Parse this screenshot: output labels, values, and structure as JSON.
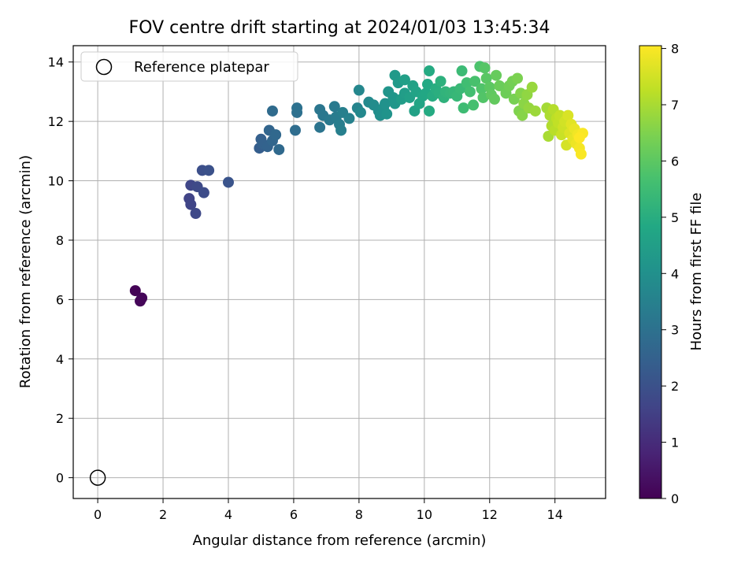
{
  "chart_data": {
    "type": "scatter",
    "title": "FOV centre drift starting at 2024/01/03 13:45:34",
    "xlabel": "Angular distance from reference (arcmin)",
    "ylabel": "Rotation from reference (arcmin)",
    "xlim": [
      -0.75,
      15.55
    ],
    "ylim": [
      -0.7,
      14.55
    ],
    "xticks": [
      0,
      2,
      4,
      6,
      8,
      10,
      12,
      14
    ],
    "yticks": [
      0,
      2,
      4,
      6,
      8,
      10,
      12,
      14
    ],
    "grid": true,
    "legend": {
      "placement": "top-left",
      "entries": [
        "Reference platepar"
      ]
    },
    "reference_point": {
      "x": 0,
      "y": 0
    },
    "colorbar": {
      "label": "Hours from first FF file",
      "range": [
        0,
        8.05
      ],
      "ticks": [
        0,
        1,
        2,
        3,
        4,
        5,
        6,
        7,
        8
      ],
      "colormap": "viridis"
    },
    "series": [
      {
        "points": [
          {
            "x": 1.15,
            "y": 6.3,
            "h": 0.05
          },
          {
            "x": 1.35,
            "y": 6.05,
            "h": 0.1
          },
          {
            "x": 1.3,
            "y": 5.95,
            "h": 0.12
          },
          {
            "x": 2.8,
            "y": 9.4,
            "h": 1.6
          },
          {
            "x": 2.85,
            "y": 9.2,
            "h": 1.65
          },
          {
            "x": 2.85,
            "y": 9.85,
            "h": 1.7
          },
          {
            "x": 3.0,
            "y": 8.9,
            "h": 1.75
          },
          {
            "x": 3.05,
            "y": 9.8,
            "h": 1.8
          },
          {
            "x": 3.25,
            "y": 9.6,
            "h": 1.85
          },
          {
            "x": 3.2,
            "y": 10.35,
            "h": 1.95
          },
          {
            "x": 3.4,
            "y": 10.35,
            "h": 2.0
          },
          {
            "x": 4.0,
            "y": 9.95,
            "h": 2.1
          },
          {
            "x": 4.95,
            "y": 11.1,
            "h": 2.4
          },
          {
            "x": 5.0,
            "y": 11.4,
            "h": 2.45
          },
          {
            "x": 5.05,
            "y": 11.25,
            "h": 2.5
          },
          {
            "x": 5.2,
            "y": 11.15,
            "h": 2.55
          },
          {
            "x": 5.25,
            "y": 11.7,
            "h": 2.6
          },
          {
            "x": 5.35,
            "y": 11.35,
            "h": 2.65
          },
          {
            "x": 5.45,
            "y": 11.55,
            "h": 2.7
          },
          {
            "x": 5.55,
            "y": 11.05,
            "h": 2.75
          },
          {
            "x": 5.35,
            "y": 12.35,
            "h": 2.8
          },
          {
            "x": 6.05,
            "y": 11.7,
            "h": 2.85
          },
          {
            "x": 6.1,
            "y": 12.3,
            "h": 2.95
          },
          {
            "x": 6.1,
            "y": 12.45,
            "h": 3.0
          },
          {
            "x": 6.8,
            "y": 11.8,
            "h": 3.1
          },
          {
            "x": 6.8,
            "y": 12.4,
            "h": 3.15
          },
          {
            "x": 6.9,
            "y": 12.2,
            "h": 3.2
          },
          {
            "x": 7.1,
            "y": 12.05,
            "h": 3.25
          },
          {
            "x": 7.25,
            "y": 12.5,
            "h": 3.3
          },
          {
            "x": 7.3,
            "y": 12.15,
            "h": 3.35
          },
          {
            "x": 7.4,
            "y": 11.9,
            "h": 3.4
          },
          {
            "x": 7.5,
            "y": 12.3,
            "h": 3.45
          },
          {
            "x": 7.45,
            "y": 11.7,
            "h": 3.45
          },
          {
            "x": 7.7,
            "y": 12.1,
            "h": 3.5
          },
          {
            "x": 7.95,
            "y": 12.45,
            "h": 3.6
          },
          {
            "x": 8.0,
            "y": 13.05,
            "h": 3.7
          },
          {
            "x": 8.05,
            "y": 12.3,
            "h": 3.75
          },
          {
            "x": 8.3,
            "y": 12.65,
            "h": 3.8
          },
          {
            "x": 8.45,
            "y": 12.55,
            "h": 3.85
          },
          {
            "x": 8.6,
            "y": 12.35,
            "h": 3.9
          },
          {
            "x": 8.65,
            "y": 12.2,
            "h": 3.95
          },
          {
            "x": 8.75,
            "y": 12.45,
            "h": 4.0
          },
          {
            "x": 8.8,
            "y": 12.6,
            "h": 4.05
          },
          {
            "x": 8.85,
            "y": 12.25,
            "h": 4.1
          },
          {
            "x": 8.9,
            "y": 13.0,
            "h": 4.15
          },
          {
            "x": 9.05,
            "y": 12.8,
            "h": 4.2
          },
          {
            "x": 9.1,
            "y": 12.6,
            "h": 4.25
          },
          {
            "x": 9.1,
            "y": 13.55,
            "h": 4.3
          },
          {
            "x": 9.2,
            "y": 13.3,
            "h": 4.35
          },
          {
            "x": 9.3,
            "y": 12.75,
            "h": 4.4
          },
          {
            "x": 9.4,
            "y": 12.95,
            "h": 4.45
          },
          {
            "x": 9.4,
            "y": 13.4,
            "h": 4.5
          },
          {
            "x": 9.55,
            "y": 12.8,
            "h": 4.55
          },
          {
            "x": 9.65,
            "y": 13.2,
            "h": 4.6
          },
          {
            "x": 9.7,
            "y": 12.35,
            "h": 4.6
          },
          {
            "x": 9.75,
            "y": 13.0,
            "h": 4.65
          },
          {
            "x": 9.85,
            "y": 12.6,
            "h": 4.7
          },
          {
            "x": 9.95,
            "y": 12.85,
            "h": 4.75
          },
          {
            "x": 10.05,
            "y": 12.95,
            "h": 4.8
          },
          {
            "x": 10.1,
            "y": 13.25,
            "h": 4.85
          },
          {
            "x": 10.15,
            "y": 12.35,
            "h": 4.9
          },
          {
            "x": 10.15,
            "y": 13.7,
            "h": 4.9
          },
          {
            "x": 10.25,
            "y": 12.85,
            "h": 4.95
          },
          {
            "x": 10.35,
            "y": 13.1,
            "h": 5.0
          },
          {
            "x": 10.45,
            "y": 12.95,
            "h": 5.05
          },
          {
            "x": 10.5,
            "y": 13.35,
            "h": 5.1
          },
          {
            "x": 10.6,
            "y": 12.8,
            "h": 5.15
          },
          {
            "x": 10.65,
            "y": 13.0,
            "h": 5.2
          },
          {
            "x": 10.8,
            "y": 12.95,
            "h": 5.25
          },
          {
            "x": 10.9,
            "y": 13.0,
            "h": 5.3
          },
          {
            "x": 11.0,
            "y": 12.85,
            "h": 5.35
          },
          {
            "x": 11.1,
            "y": 13.1,
            "h": 5.4
          },
          {
            "x": 11.15,
            "y": 13.7,
            "h": 5.45
          },
          {
            "x": 11.2,
            "y": 12.45,
            "h": 5.5
          },
          {
            "x": 11.3,
            "y": 13.3,
            "h": 5.55
          },
          {
            "x": 11.4,
            "y": 13.0,
            "h": 5.6
          },
          {
            "x": 11.5,
            "y": 12.55,
            "h": 5.65
          },
          {
            "x": 11.55,
            "y": 13.35,
            "h": 5.7
          },
          {
            "x": 11.7,
            "y": 13.85,
            "h": 5.75
          },
          {
            "x": 11.75,
            "y": 13.1,
            "h": 5.8
          },
          {
            "x": 11.8,
            "y": 12.8,
            "h": 5.85
          },
          {
            "x": 11.85,
            "y": 13.8,
            "h": 5.9
          },
          {
            "x": 11.9,
            "y": 13.45,
            "h": 5.95
          },
          {
            "x": 12.0,
            "y": 13.15,
            "h": 6.0
          },
          {
            "x": 12.05,
            "y": 12.9,
            "h": 6.05
          },
          {
            "x": 12.15,
            "y": 12.75,
            "h": 6.1
          },
          {
            "x": 12.2,
            "y": 13.55,
            "h": 6.15
          },
          {
            "x": 12.3,
            "y": 13.2,
            "h": 6.2
          },
          {
            "x": 12.5,
            "y": 12.95,
            "h": 6.25
          },
          {
            "x": 12.6,
            "y": 13.2,
            "h": 6.3
          },
          {
            "x": 12.7,
            "y": 13.35,
            "h": 6.35
          },
          {
            "x": 12.75,
            "y": 12.75,
            "h": 6.4
          },
          {
            "x": 12.85,
            "y": 13.45,
            "h": 6.45
          },
          {
            "x": 12.9,
            "y": 12.35,
            "h": 6.5
          },
          {
            "x": 12.95,
            "y": 12.95,
            "h": 6.55
          },
          {
            "x": 13.0,
            "y": 12.2,
            "h": 6.6
          },
          {
            "x": 13.05,
            "y": 12.6,
            "h": 6.65
          },
          {
            "x": 13.15,
            "y": 12.9,
            "h": 6.7
          },
          {
            "x": 13.2,
            "y": 12.45,
            "h": 6.75
          },
          {
            "x": 13.3,
            "y": 13.15,
            "h": 6.8
          },
          {
            "x": 13.4,
            "y": 12.35,
            "h": 6.85
          },
          {
            "x": 13.75,
            "y": 12.45,
            "h": 6.95
          },
          {
            "x": 13.8,
            "y": 11.5,
            "h": 7.0
          },
          {
            "x": 13.85,
            "y": 12.2,
            "h": 7.05
          },
          {
            "x": 13.9,
            "y": 11.85,
            "h": 7.1
          },
          {
            "x": 13.95,
            "y": 12.4,
            "h": 7.15
          },
          {
            "x": 14.0,
            "y": 11.7,
            "h": 7.2
          },
          {
            "x": 14.05,
            "y": 12.1,
            "h": 7.25
          },
          {
            "x": 14.1,
            "y": 11.95,
            "h": 7.3
          },
          {
            "x": 14.15,
            "y": 12.2,
            "h": 7.35
          },
          {
            "x": 14.2,
            "y": 11.55,
            "h": 7.4
          },
          {
            "x": 14.25,
            "y": 11.8,
            "h": 7.45
          },
          {
            "x": 14.3,
            "y": 12.0,
            "h": 7.5
          },
          {
            "x": 14.35,
            "y": 11.2,
            "h": 7.55
          },
          {
            "x": 14.4,
            "y": 12.2,
            "h": 7.6
          },
          {
            "x": 14.45,
            "y": 11.6,
            "h": 7.65
          },
          {
            "x": 14.5,
            "y": 11.9,
            "h": 7.7
          },
          {
            "x": 14.55,
            "y": 11.4,
            "h": 7.75
          },
          {
            "x": 14.6,
            "y": 11.75,
            "h": 7.8
          },
          {
            "x": 14.65,
            "y": 11.25,
            "h": 7.85
          },
          {
            "x": 14.7,
            "y": 11.55,
            "h": 7.9
          },
          {
            "x": 14.75,
            "y": 11.1,
            "h": 7.95
          },
          {
            "x": 14.8,
            "y": 10.9,
            "h": 8.0
          },
          {
            "x": 14.85,
            "y": 11.6,
            "h": 8.0
          },
          {
            "x": 14.75,
            "y": 11.45,
            "h": 8.05
          }
        ]
      }
    ]
  }
}
